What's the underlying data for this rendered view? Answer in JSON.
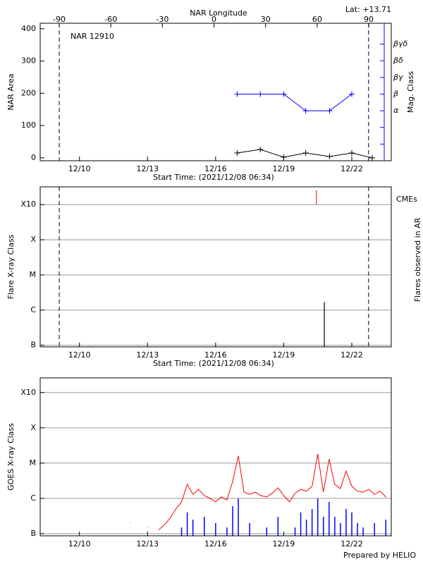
{
  "chart_data": [
    {
      "type": "line",
      "title": "NAR 12910",
      "subtitle": "Lat: +13.71",
      "x2_label": "NAR Longitude",
      "x_label": "Start Time: (2021/12/08 06:34)",
      "y_label": "NAR Area",
      "y2_label": "Mag. Class",
      "y2_color": "#0000ff",
      "x": [
        16.95,
        17.97,
        19.0,
        19.97,
        21.02,
        22.0,
        22.9
      ],
      "series": [
        {
          "color": "#000000",
          "marker": "plus",
          "values": [
            15,
            26,
            2,
            15,
            4,
            15,
            0
          ]
        },
        {
          "color": "#0000ff",
          "marker": "plus",
          "axis": "y2",
          "values": [
            4,
            4,
            4,
            3,
            3,
            4,
            null
          ]
        }
      ],
      "xlim": [
        8.27,
        23.74
      ],
      "xticks": [
        {
          "value": 10,
          "label": "12/10"
        },
        {
          "value": 13,
          "label": "12/13"
        },
        {
          "value": 16,
          "label": "12/16"
        },
        {
          "value": 19,
          "label": "12/19"
        },
        {
          "value": 22,
          "label": "12/22"
        }
      ],
      "x2lim": [
        -101.1,
        103.1
      ],
      "x2ticks": [
        -90,
        -60,
        -30,
        0,
        30,
        60,
        90
      ],
      "ylim": [
        -9,
        417
      ],
      "yticks": [
        0,
        100,
        200,
        300,
        400
      ],
      "y2lim": [
        0,
        8.25
      ],
      "y2ticks": [
        {
          "value": 3,
          "label": "α"
        },
        {
          "value": 4,
          "label": "β"
        },
        {
          "value": 5,
          "label": "βγ"
        },
        {
          "value": 6,
          "label": "βδ"
        },
        {
          "value": 7,
          "label": "βγδ"
        }
      ],
      "y2minor": [
        1,
        2
      ],
      "vlines": [
        9.11,
        22.74
      ],
      "grid": false
    },
    {
      "type": "stem",
      "x_label": "Start Time: (2021/12/08 06:34)",
      "y_label": "Flare X-ray Class",
      "y2_label": "Flares observed in AR",
      "log_scale": true,
      "x": [
        20.79
      ],
      "values": [
        1.7e-06
      ],
      "color": "#000000",
      "cme_label": "CMEs",
      "cme_x": [
        20.44
      ],
      "cme_color": "#ff0000",
      "xlim": [
        8.27,
        23.74
      ],
      "xticks": [
        {
          "value": 10,
          "label": "12/10"
        },
        {
          "value": 13,
          "label": "12/13"
        },
        {
          "value": 16,
          "label": "12/16"
        },
        {
          "value": 19,
          "label": "12/19"
        },
        {
          "value": 22,
          "label": "12/22"
        }
      ],
      "ylim": [
        9e-08,
        0.0032
      ],
      "yticks": [
        {
          "value": 1e-07,
          "label": "B"
        },
        {
          "value": 1e-06,
          "label": "C"
        },
        {
          "value": 1e-05,
          "label": "M"
        },
        {
          "value": 0.0001,
          "label": "X"
        },
        {
          "value": 0.001,
          "label": "X10"
        }
      ],
      "vlines": [
        9.11,
        22.74
      ],
      "grid": true
    },
    {
      "type": "line",
      "y_label": "GOES X-ray Class",
      "footer": "Prepared by HELIO",
      "log_scale": true,
      "x": [
        12.0,
        12.25,
        12.5,
        12.75,
        13.0,
        13.25,
        13.5,
        13.75,
        14.0,
        14.25,
        14.5,
        14.75,
        15.0,
        15.25,
        15.5,
        15.75,
        16.0,
        16.25,
        16.5,
        16.75,
        17.0,
        17.25,
        17.5,
        17.75,
        18.0,
        18.25,
        18.5,
        18.75,
        19.0,
        19.25,
        19.5,
        19.75,
        20.0,
        20.25,
        20.5,
        20.75,
        21.0,
        21.25,
        21.5,
        21.75,
        22.0,
        22.25,
        22.5,
        22.75,
        23.0,
        23.25,
        23.5
      ],
      "series": [
        {
          "color": "#ff0000",
          "values": [
            null,
            2e-07,
            null,
            null,
            1.5e-07,
            null,
            1.3e-07,
            1.8e-07,
            2.8e-07,
            5e-07,
            8e-07,
            2.5e-06,
            1.3e-06,
            1.8e-06,
            1.2e-06,
            1e-06,
            8e-07,
            1.1e-06,
            9e-07,
            3e-06,
            1.6e-05,
            1.5e-06,
            1.3e-06,
            1.5e-06,
            1.2e-06,
            1.1e-06,
            1.4e-06,
            2e-06,
            1.2e-06,
            8e-07,
            1.4e-06,
            1.8e-06,
            1.6e-06,
            2.2e-06,
            1.8e-05,
            1.5e-06,
            1.3e-05,
            2.5e-06,
            1.9e-06,
            6e-06,
            2.2e-06,
            1.6e-06,
            1.5e-06,
            1.8e-06,
            1.3e-06,
            1.6e-06,
            1.1e-06
          ]
        },
        {
          "color": "#0000ff",
          "style": "spike",
          "values": [
            null,
            null,
            null,
            null,
            null,
            null,
            null,
            null,
            null,
            null,
            1.5e-07,
            4e-07,
            2.5e-07,
            null,
            3e-07,
            null,
            2e-07,
            null,
            1.5e-07,
            6e-07,
            1e-06,
            null,
            2e-07,
            null,
            null,
            1.5e-07,
            null,
            3e-07,
            null,
            null,
            1.5e-07,
            4e-07,
            2.5e-07,
            5e-07,
            1e-06,
            3e-07,
            8e-07,
            3e-07,
            2e-07,
            5e-07,
            4e-07,
            2e-07,
            1.5e-07,
            null,
            2e-07,
            null,
            2.5e-07
          ]
        }
      ],
      "xlim": [
        8.27,
        23.74
      ],
      "xticks": [
        {
          "value": 10,
          "label": "12/10"
        },
        {
          "value": 13,
          "label": "12/13"
        },
        {
          "value": 16,
          "label": "12/16"
        },
        {
          "value": 19,
          "label": "12/19"
        },
        {
          "value": 22,
          "label": "12/22"
        }
      ],
      "ylim": [
        8.7e-08,
        0.0026
      ],
      "yticks": [
        {
          "value": 1e-07,
          "label": "B"
        },
        {
          "value": 1e-06,
          "label": "C"
        },
        {
          "value": 1e-05,
          "label": "M"
        },
        {
          "value": 0.0001,
          "label": "X"
        },
        {
          "value": 0.001,
          "label": "X10"
        }
      ],
      "grid": true
    }
  ]
}
